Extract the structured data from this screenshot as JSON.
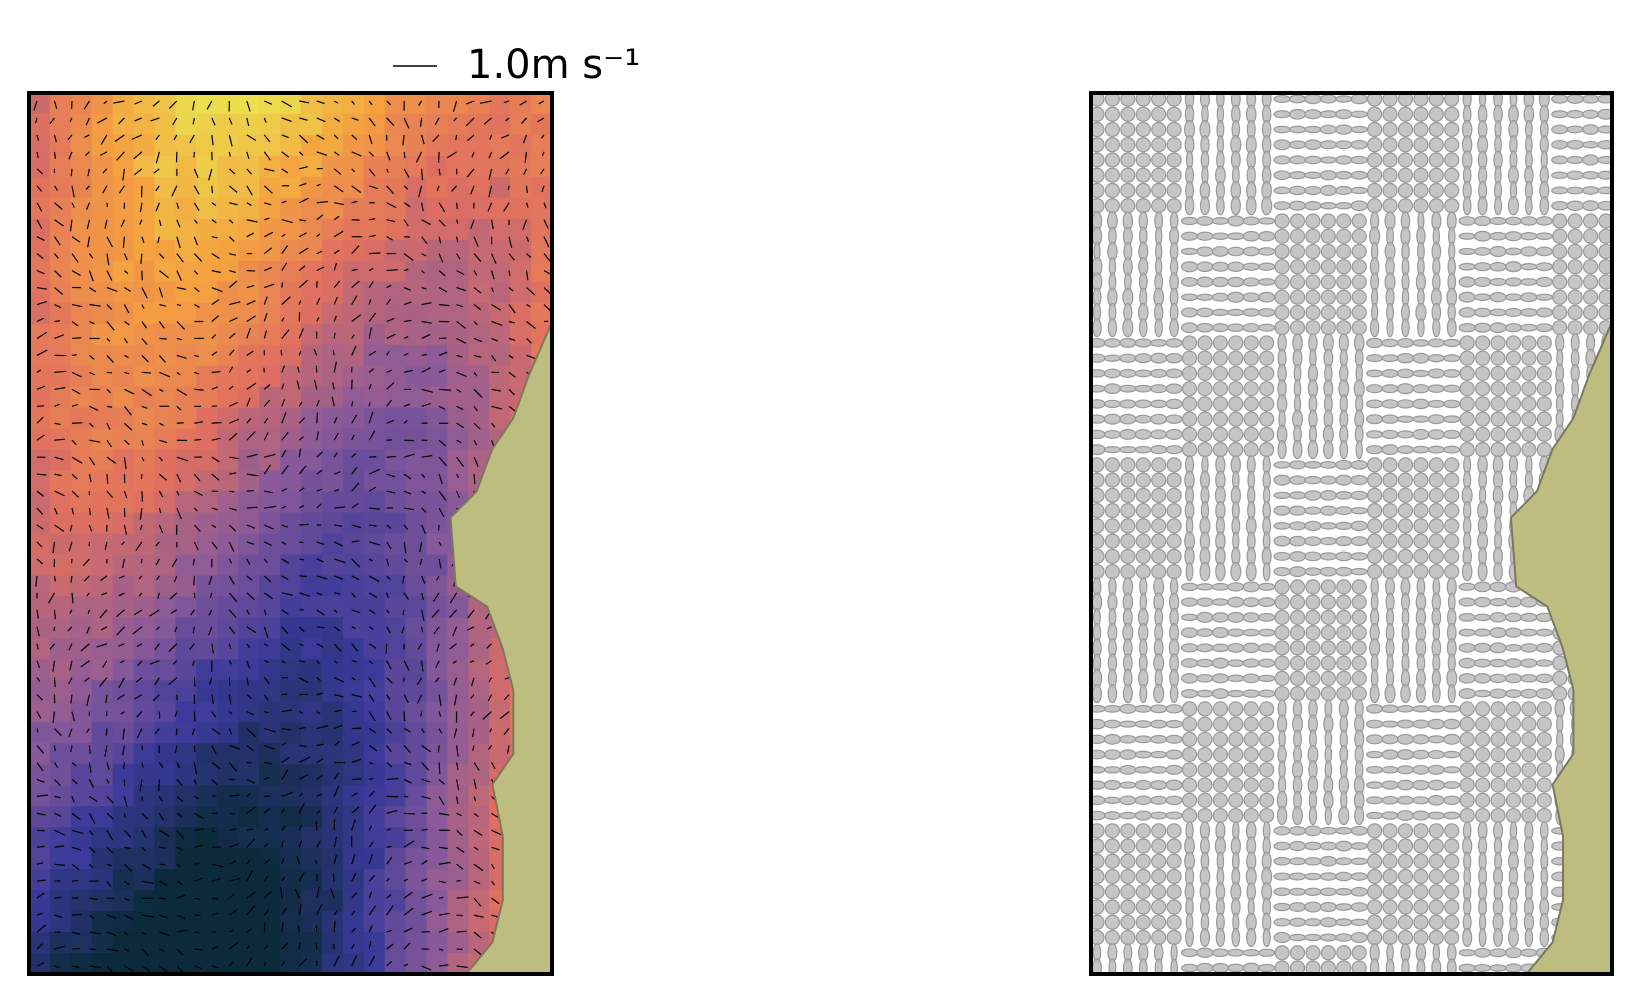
{
  "key": {
    "label": "1.0m s⁻¹"
  }
}
